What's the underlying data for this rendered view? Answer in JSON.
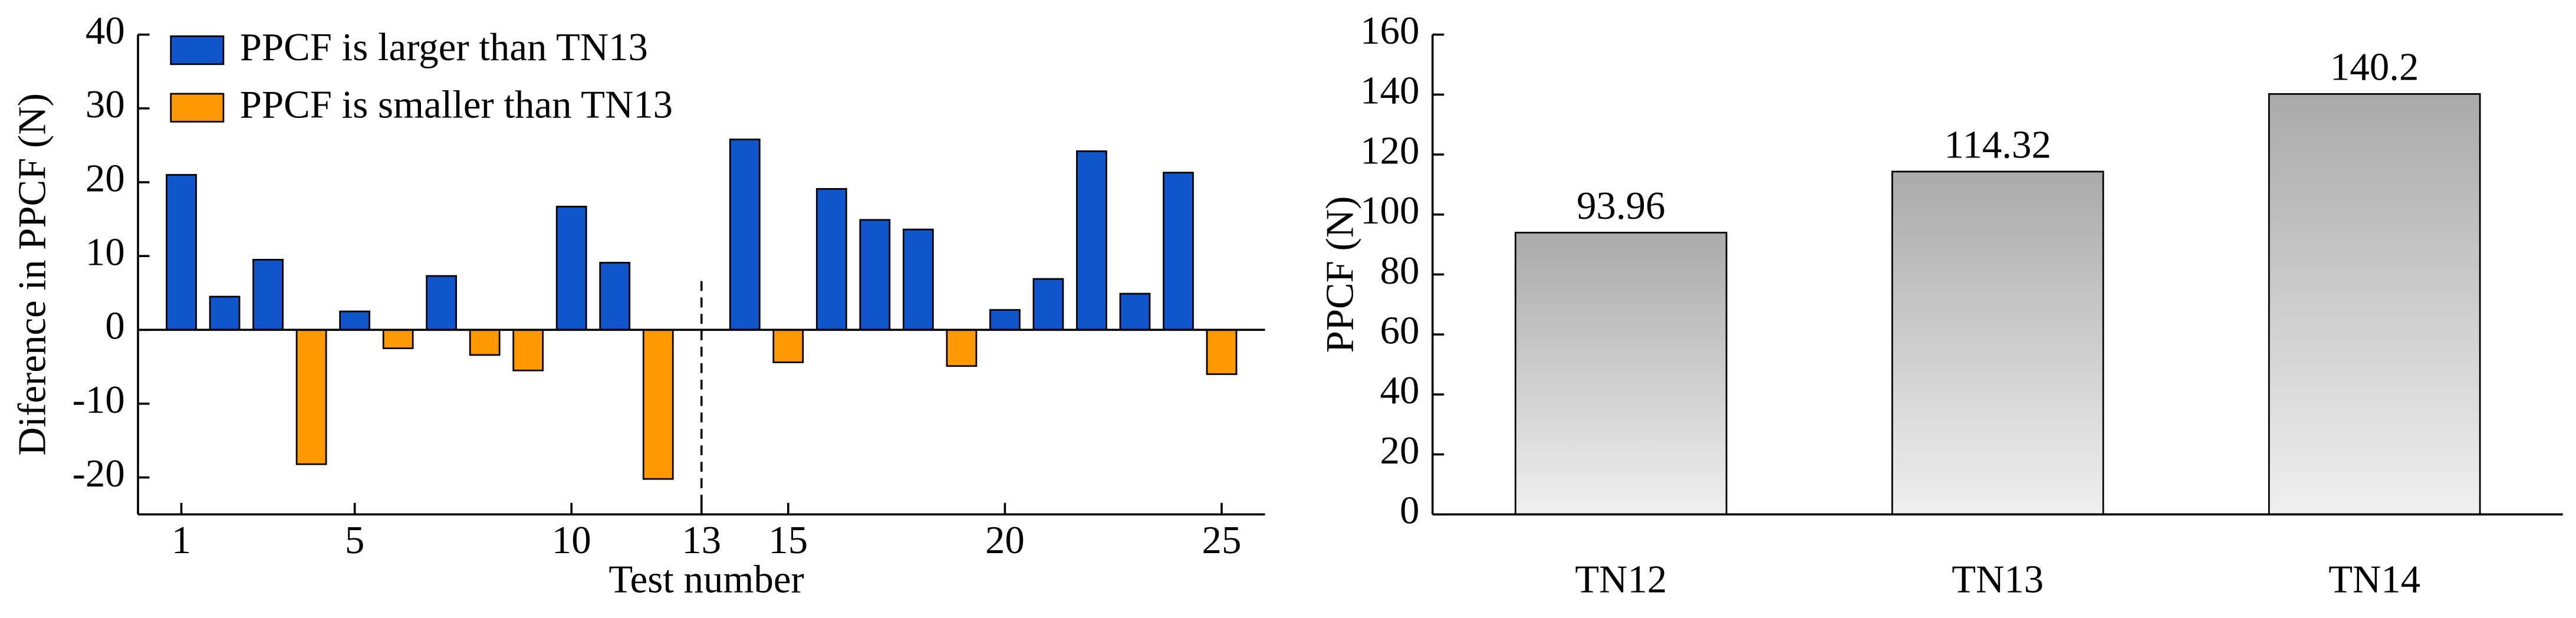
{
  "chart_data": [
    {
      "type": "bar",
      "xlabel": "Test number",
      "ylabel": "Diference in PPCF (N)",
      "x": [
        1,
        2,
        3,
        4,
        5,
        6,
        7,
        8,
        9,
        10,
        11,
        12,
        13,
        14,
        15,
        16,
        17,
        18,
        19,
        20,
        21,
        22,
        23,
        24,
        25
      ],
      "series": [
        {
          "name": "PPCF is larger than TN13",
          "color": "#1155cc",
          "values": [
            21,
            4.5,
            9.5,
            null,
            2.5,
            null,
            7.3,
            null,
            null,
            16.7,
            9.1,
            null,
            null,
            25.8,
            null,
            19.1,
            14.9,
            13.6,
            null,
            2.7,
            6.9,
            24.2,
            4.9,
            21.3,
            null
          ]
        },
        {
          "name": "PPCF is smaller than TN13",
          "color": "#ff9900",
          "values": [
            null,
            null,
            null,
            -18.2,
            null,
            -2.5,
            null,
            -3.4,
            -5.5,
            null,
            null,
            -20.2,
            null,
            null,
            -4.4,
            null,
            null,
            null,
            -4.9,
            null,
            null,
            null,
            null,
            null,
            -6
          ]
        }
      ],
      "xlim": [
        0,
        26
      ],
      "xticks": [
        1,
        5,
        10,
        13,
        15,
        20,
        25
      ],
      "ylim": [
        -25,
        40
      ],
      "yticks": [
        -20,
        -10,
        0,
        10,
        20,
        30,
        40
      ],
      "divider": 13,
      "legend": "upper left"
    },
    {
      "type": "bar",
      "ylabel": "PPCF (N)",
      "categories": [
        "TN12",
        "TN13",
        "TN14"
      ],
      "values": [
        93.96,
        114.32,
        140.2
      ],
      "color": "gradient-gray",
      "ylim": [
        0,
        160
      ],
      "yticks": [
        0,
        20,
        40,
        60,
        80,
        100,
        120,
        140,
        160
      ]
    }
  ]
}
